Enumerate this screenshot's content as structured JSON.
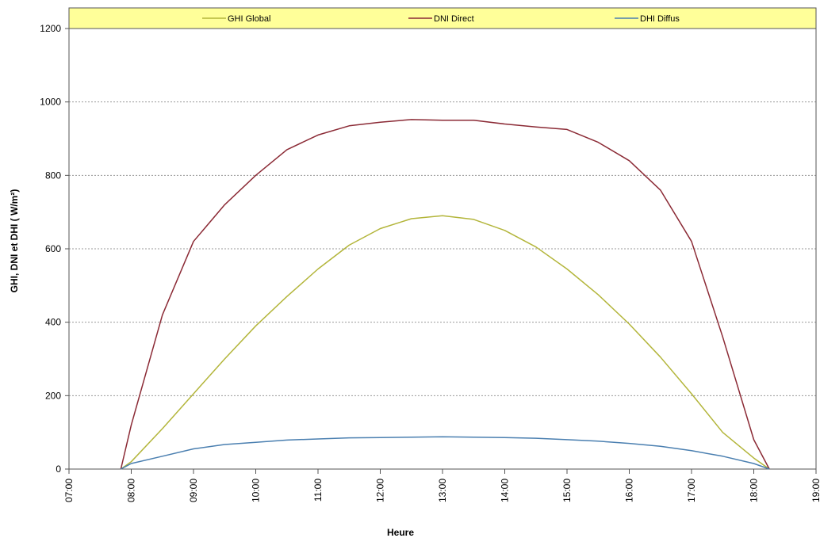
{
  "chart_data": {
    "type": "line",
    "title": "",
    "xlabel": "Heure",
    "ylabel": "GHI, DNI et DHI ( W/m²)",
    "x_ticks": [
      "07:00",
      "08:00",
      "09:00",
      "10:00",
      "11:00",
      "12:00",
      "13:00",
      "14:00",
      "15:00",
      "16:00",
      "17:00",
      "18:00",
      "19:00"
    ],
    "xlim": [
      "07:00",
      "19:00"
    ],
    "y_ticks": [
      0,
      200,
      400,
      600,
      800,
      1000,
      1200
    ],
    "ylim": [
      0,
      1200
    ],
    "grid": "horizontal dotted",
    "legend_position": "top",
    "x": [
      "07:50",
      "08:00",
      "08:30",
      "09:00",
      "09:30",
      "10:00",
      "10:30",
      "11:00",
      "11:30",
      "12:00",
      "12:30",
      "13:00",
      "13:30",
      "14:00",
      "14:30",
      "15:00",
      "15:30",
      "16:00",
      "16:30",
      "17:00",
      "17:30",
      "18:00",
      "18:15"
    ],
    "series": [
      {
        "name": "GHI Global",
        "color": "#b3b53a",
        "values": [
          0,
          20,
          110,
          205,
          300,
          390,
          470,
          545,
          610,
          655,
          682,
          690,
          680,
          650,
          605,
          545,
          475,
          395,
          305,
          205,
          100,
          30,
          0
        ]
      },
      {
        "name": "DNI Direct",
        "color": "#8b2a35",
        "values": [
          0,
          120,
          420,
          620,
          720,
          800,
          870,
          910,
          935,
          945,
          952,
          950,
          950,
          940,
          932,
          925,
          890,
          840,
          760,
          620,
          360,
          80,
          0
        ]
      },
      {
        "name": "DHI Diffus",
        "color": "#4a7fb0",
        "values": [
          0,
          15,
          35,
          55,
          67,
          73,
          79,
          82,
          85,
          86,
          87,
          88,
          87,
          86,
          84,
          80,
          76,
          70,
          62,
          50,
          35,
          15,
          0
        ]
      }
    ]
  }
}
